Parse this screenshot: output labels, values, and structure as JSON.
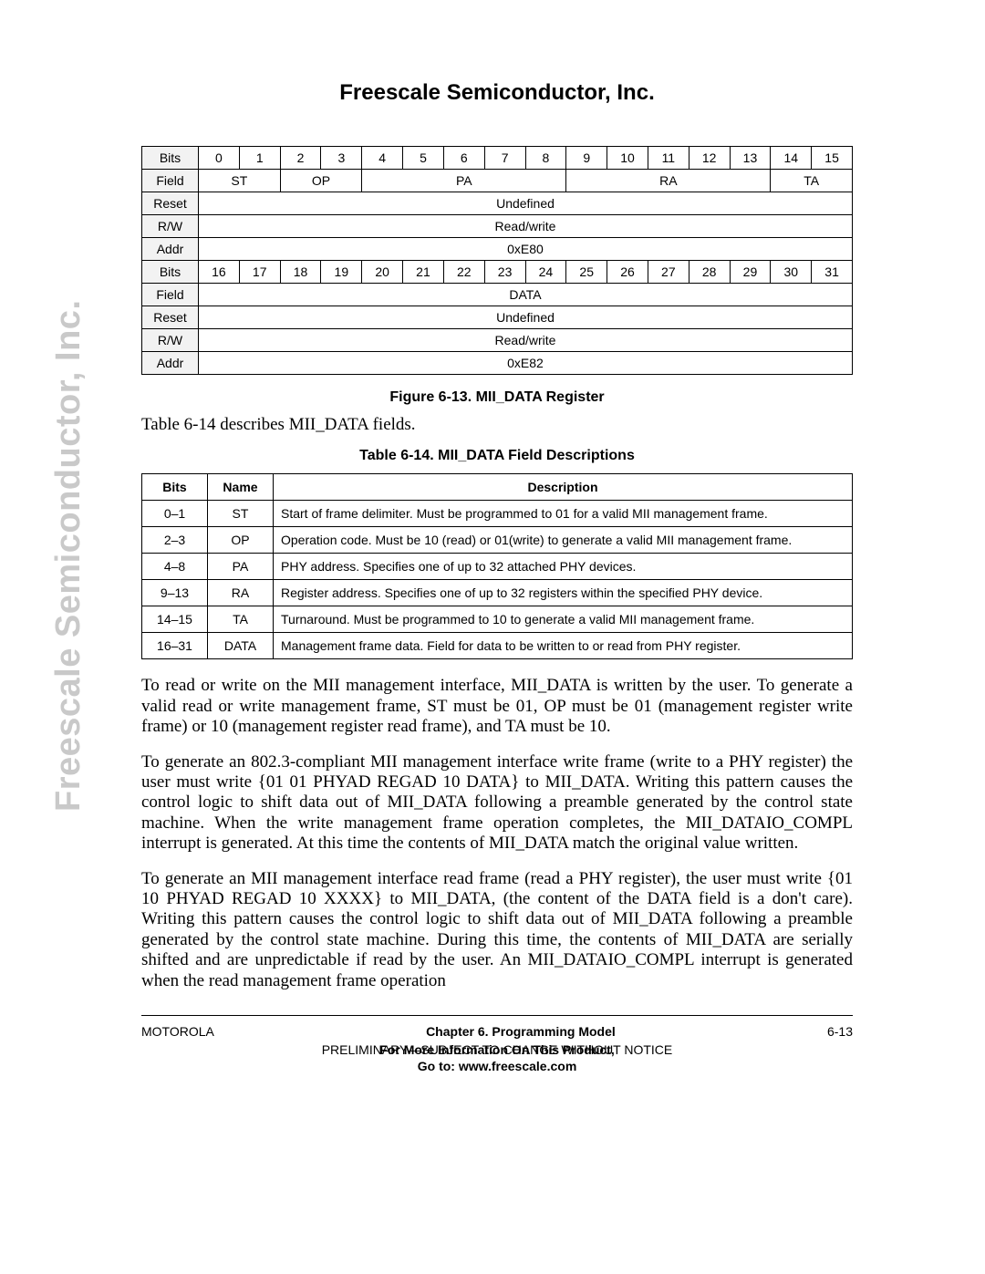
{
  "header": {
    "company": "Freescale Semiconductor, Inc."
  },
  "sidebar": {
    "text": "Freescale Semiconductor, Inc."
  },
  "register_table": {
    "label_col_width": 62,
    "rows_top": {
      "bits_label": "Bits",
      "bits": [
        "0",
        "1",
        "2",
        "3",
        "4",
        "5",
        "6",
        "7",
        "8",
        "9",
        "10",
        "11",
        "12",
        "13",
        "14",
        "15"
      ],
      "field_label": "Field",
      "fields": [
        {
          "name": "ST",
          "span": 2
        },
        {
          "name": "OP",
          "span": 2
        },
        {
          "name": "PA",
          "span": 5
        },
        {
          "name": "RA",
          "span": 5
        },
        {
          "name": "TA",
          "span": 2
        }
      ],
      "reset_label": "Reset",
      "reset_value": "Undefined",
      "rw_label": "R/W",
      "rw_value": "Read/write",
      "addr_label": "Addr",
      "addr_value": "0xE80"
    },
    "rows_bottom": {
      "bits_label": "Bits",
      "bits": [
        "16",
        "17",
        "18",
        "19",
        "20",
        "21",
        "22",
        "23",
        "24",
        "25",
        "26",
        "27",
        "28",
        "29",
        "30",
        "31"
      ],
      "field_label": "Field",
      "fields": [
        {
          "name": "DATA",
          "span": 16
        }
      ],
      "reset_label": "Reset",
      "reset_value": "Undefined",
      "rw_label": "R/W",
      "rw_value": "Read/write",
      "addr_label": "Addr",
      "addr_value": "0xE82"
    }
  },
  "figure_caption": "Figure 6-13. MII_DATA Register",
  "intro_line": "Table 6-14 describes MII_DATA fields.",
  "table_caption": "Table 6-14. MII_DATA Field Descriptions",
  "field_table": {
    "headers": [
      "Bits",
      "Name",
      "Description"
    ],
    "col_widths": [
      "72px",
      "72px",
      "auto"
    ],
    "rows": [
      {
        "bits": "0–1",
        "name": "ST",
        "desc": "Start of frame delimiter. Must be programmed to 01 for a valid MII management frame."
      },
      {
        "bits": "2–3",
        "name": "OP",
        "desc": "Operation code. Must be 10 (read) or 01(write) to generate a valid MII management frame."
      },
      {
        "bits": "4–8",
        "name": "PA",
        "desc": "PHY address. Specifies one of up to 32 attached PHY devices."
      },
      {
        "bits": "9–13",
        "name": "RA",
        "desc": "Register address. Specifies one of up to 32 registers within the specified PHY device."
      },
      {
        "bits": "14–15",
        "name": "TA",
        "desc": "Turnaround. Must be programmed to 10 to generate a valid MII management frame."
      },
      {
        "bits": "16–31",
        "name": "DATA",
        "desc": "Management frame data. Field for data to be written to or read from PHY register."
      }
    ]
  },
  "paragraphs": [
    "To read or write on the MII management interface, MII_DATA is written by the user. To generate a valid read or write management frame, ST must be 01, OP must be 01 (management register write frame) or 10 (management register read frame), and TA must be 10.",
    "To generate an 802.3-compliant MII management interface write frame (write to a PHY register) the user must write {01 01 PHYAD REGAD 10 DATA} to MII_DATA. Writing this pattern causes the control logic to shift data out of MII_DATA following a preamble generated by the control state machine. When the write management frame operation completes, the MII_DATAIO_COMPL interrupt is generated. At this time the contents of MII_DATA match the original value written.",
    "To generate an MII management interface read frame (read a PHY register), the user must write {01 10 PHYAD REGAD 10 XXXX} to MII_DATA, (the content of the DATA field is a don't care). Writing this pattern causes the control logic to shift data out of MII_DATA following a preamble generated by the control state machine. During this time, the contents of MII_DATA are serially shifted and are unpredictable if read by the user. An MII_DATAIO_COMPL interrupt is generated when the read management frame operation"
  ],
  "footer": {
    "left": "MOTOROLA",
    "center_bold": "Chapter 6. Programming Model",
    "right": "6-13",
    "line2": "PRELIMINARY—SUBJECT TO CHANGE WITHOUT NOTICE",
    "line2_overlay": "For More Information On This Product,",
    "line3": "Go to: www.freescale.com"
  }
}
